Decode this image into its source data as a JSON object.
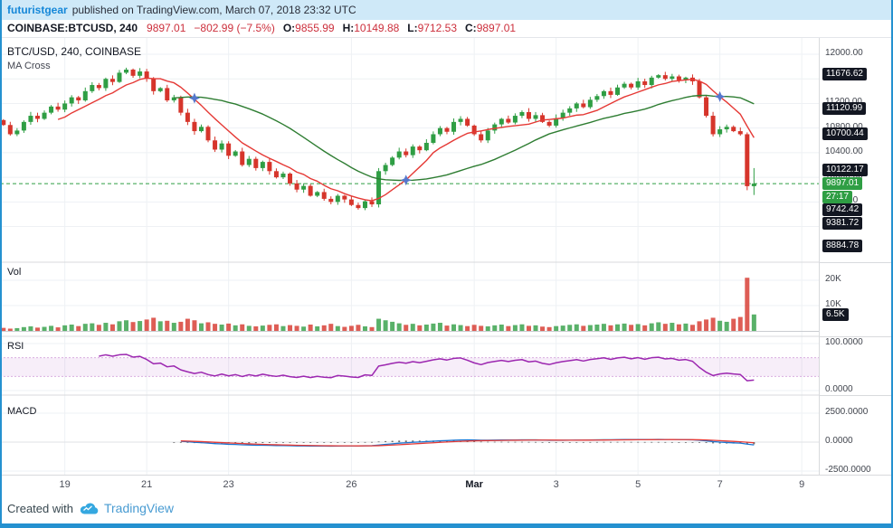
{
  "header": {
    "user": "futuristgear",
    "published": "published on TradingView.com, March 07, 2018 23:32 UTC"
  },
  "legend": {
    "symbol": "COINBASE:BTCUSD, 240",
    "last": "9897.01",
    "change": "−802.99 (−7.5%)",
    "o_label": "O:",
    "o": "9855.99",
    "h_label": "H:",
    "h": "10149.88",
    "l_label": "L:",
    "l": "9712.53",
    "c_label": "C:",
    "c": "9897.01"
  },
  "panes": {
    "price_title": "BTC/USD, 240, COINBASE",
    "price_subtitle": "MA Cross",
    "vol": "Vol",
    "rsi": "RSI",
    "macd": "MACD"
  },
  "axis": {
    "price_badges": [
      "11676.62",
      "11120.99",
      "10700.44",
      "10122.17",
      "9742.42",
      "9381.72",
      "8884.78"
    ],
    "price_gridlines": [
      12000,
      11600,
      11200,
      10800,
      10400,
      10000,
      9600,
      9200
    ],
    "last_price_badge": "9897.01",
    "countdown": "27:17",
    "vol_labels": [
      {
        "text": "20K",
        "k": 20
      },
      {
        "text": "10K",
        "k": 10
      }
    ],
    "vol_badge": "6.5K",
    "rsi_labels": [
      {
        "text": "100.0000",
        "v": 100
      },
      {
        "text": "0.0000",
        "v": 0
      }
    ],
    "macd_labels": [
      {
        "text": "2500.0000",
        "v": 2500
      },
      {
        "text": "0.0000",
        "v": 0
      },
      {
        "text": "-2500.0000",
        "v": -2500
      }
    ]
  },
  "time_axis": [
    {
      "label": "19",
      "bar": 9
    },
    {
      "label": "21",
      "bar": 21
    },
    {
      "label": "23",
      "bar": 33
    },
    {
      "label": "26",
      "bar": 51
    },
    {
      "label": "Mar",
      "bar": 69,
      "bold": true
    },
    {
      "label": "3",
      "bar": 81
    },
    {
      "label": "5",
      "bar": 93
    },
    {
      "label": "7",
      "bar": 105
    },
    {
      "label": "9",
      "bar": 117
    }
  ],
  "footer": {
    "created": "Created with",
    "brand": "TradingView"
  },
  "colors": {
    "frame": "#2491d0",
    "header_bg": "#cfe9f8",
    "link": "#1587d8",
    "up": "#2f9e44",
    "down": "#d6352b",
    "down_text": "#cc2f3c",
    "ma_fast": "#e53935",
    "ma_slow": "#2e7d32",
    "rsi": "#9c27b0",
    "macd_line": "#1976d2",
    "macd_signal": "#e53935",
    "macd_hist": "#444444",
    "star": "#5577cc",
    "badge_dark": "#131722",
    "grid": "#eef1f4",
    "separator": "#d8dadd"
  },
  "chart_data": {
    "type": "candlestick",
    "title": "BTC/USD, 240, COINBASE",
    "interval_minutes": 240,
    "price_axis_range": [
      8800,
      12060
    ],
    "slots": 120,
    "closes": [
      10850,
      10700,
      10760,
      10900,
      11000,
      10950,
      11050,
      11150,
      11100,
      11200,
      11300,
      11250,
      11400,
      11500,
      11450,
      11600,
      11550,
      11700,
      11750,
      11650,
      11720,
      11600,
      11400,
      11450,
      11250,
      11300,
      11050,
      10900,
      10750,
      10820,
      10600,
      10450,
      10550,
      10350,
      10420,
      10200,
      10300,
      10150,
      10250,
      10100,
      10000,
      10060,
      9900,
      9800,
      9860,
      9700,
      9760,
      9650,
      9600,
      9700,
      9640,
      9550,
      9500,
      9610,
      9560,
      10100,
      10200,
      10320,
      10420,
      10360,
      10500,
      10440,
      10560,
      10700,
      10800,
      10740,
      10900,
      10950,
      10840,
      10700,
      10600,
      10760,
      10860,
      10950,
      10890,
      11000,
      11060,
      10950,
      11010,
      10900,
      10840,
      10960,
      11050,
      11120,
      11200,
      11140,
      11260,
      11320,
      11400,
      11340,
      11460,
      11520,
      11460,
      11560,
      11500,
      11620,
      11660,
      11600,
      11640,
      11580,
      11620,
      11560,
      11300,
      11000,
      10700,
      10780,
      10820,
      10750,
      10700,
      9855.99,
      9897.01
    ],
    "bar_overrides": {
      "109": [
        10700,
        10730,
        9790,
        9855.99
      ],
      "110": [
        9855.99,
        10149.88,
        9712.53,
        9897.01
      ]
    },
    "volumes_k": [
      1.2,
      0.9,
      1.1,
      1.5,
      1.8,
      1.3,
      1.6,
      2.0,
      1.4,
      2.2,
      2.5,
      1.9,
      2.8,
      3.0,
      2.4,
      3.2,
      2.6,
      3.8,
      4.2,
      3.5,
      3.9,
      4.5,
      5.2,
      3.8,
      4.0,
      3.2,
      3.6,
      4.8,
      4.2,
      3.0,
      3.4,
      2.8,
      2.5,
      2.9,
      2.2,
      2.6,
      2.0,
      1.8,
      2.1,
      2.4,
      2.6,
      1.9,
      2.3,
      2.0,
      1.7,
      2.5,
      1.8,
      2.2,
      2.8,
      1.9,
      1.6,
      2.0,
      2.4,
      1.8,
      1.5,
      4.8,
      4.2,
      3.6,
      3.0,
      2.4,
      2.8,
      2.2,
      2.5,
      2.9,
      3.2,
      2.1,
      2.6,
      2.3,
      1.9,
      2.4,
      2.0,
      1.8,
      2.2,
      2.5,
      1.9,
      2.3,
      2.6,
      2.0,
      2.2,
      1.7,
      1.5,
      1.9,
      2.1,
      2.4,
      2.6,
      2.0,
      2.3,
      2.5,
      2.8,
      2.2,
      2.6,
      2.9,
      2.4,
      2.7,
      2.2,
      3.0,
      3.4,
      2.8,
      3.2,
      2.6,
      2.9,
      2.4,
      3.8,
      4.5,
      5.2,
      4.0,
      3.6,
      4.8,
      5.5,
      21.0,
      6.5
    ],
    "indicators": {
      "ma_fast": 9,
      "ma_slow": 26,
      "rsi_period": 14,
      "rsi_band": [
        30,
        70
      ],
      "macd": [
        12,
        26,
        9
      ]
    },
    "current_bar": {
      "open": 9855.99,
      "high": 10149.88,
      "low": 9712.53,
      "close": 9897.01,
      "change": -802.99,
      "change_pct": -7.5
    }
  }
}
